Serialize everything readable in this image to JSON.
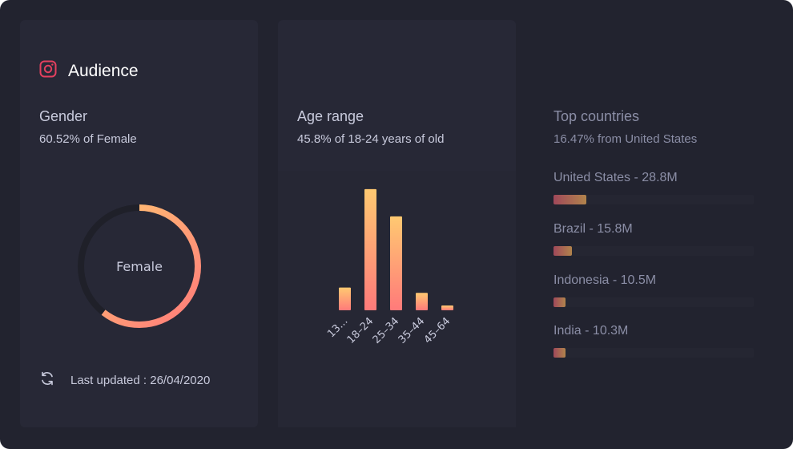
{
  "audience": {
    "title": "Audience",
    "icon": "instagram-icon",
    "gender": {
      "heading": "Gender",
      "summary": "60.52% of Female",
      "donut_label": "Female",
      "female_fraction": 0.6052
    },
    "updated": {
      "icon": "refresh-icon",
      "text": "Last updated : 26/04/2020"
    }
  },
  "age": {
    "heading": "Age range",
    "summary": "45.8% of 18-24 years of old"
  },
  "chart_data": {
    "type": "bar",
    "categories": [
      "13...",
      "18–24",
      "25–34",
      "35–44",
      "45–64"
    ],
    "values": [
      8.6,
      45.8,
      35.5,
      6.6,
      1.8
    ],
    "ylim": [
      0,
      50
    ],
    "grid": false,
    "colors": [
      "#ff7a7a",
      "#ffc971"
    ]
  },
  "countries": {
    "heading": "Top countries",
    "summary": "16.47% from United States",
    "items": [
      {
        "label": "United States - 28.8M",
        "value": 28.8
      },
      {
        "label": "Brazil - 15.8M",
        "value": 15.8
      },
      {
        "label": "Indonesia - 10.5M",
        "value": 10.5
      },
      {
        "label": "India - 10.3M",
        "value": 10.3
      }
    ],
    "max_value": 175
  },
  "colors": {
    "background": "#22232f",
    "card": "#272836",
    "accent_start": "#ff7a7a",
    "accent_end": "#ffc971",
    "instagram": "#e4405f"
  }
}
